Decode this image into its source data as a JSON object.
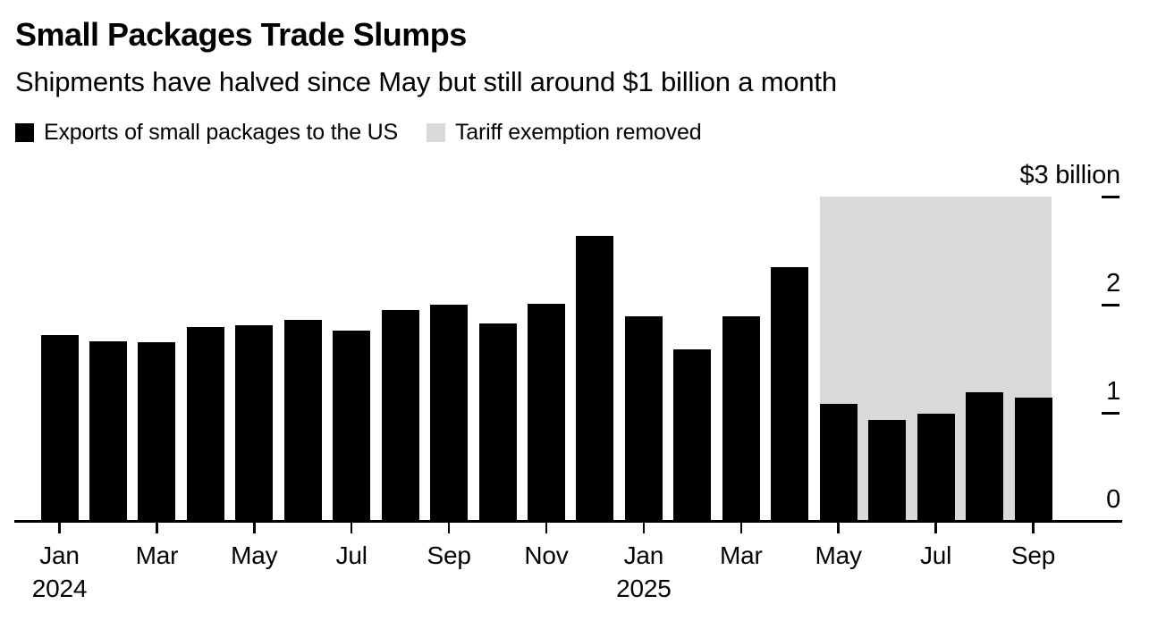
{
  "chart_data": {
    "type": "bar",
    "title": "Small Packages Trade Slumps",
    "subtitle": "Shipments have halved since May but still around $1 billion a month",
    "legend": [
      {
        "label": "Exports of small packages to the US",
        "color": "#000000"
      },
      {
        "label": "Tariff exemption removed",
        "color": "#d9d9d9"
      }
    ],
    "series_name": "Exports of small packages to the US",
    "unit": "$ billion",
    "bar_color": "#000000",
    "grid": false,
    "legend_position": "top-left",
    "y_axis_side": "right",
    "ylim": [
      0,
      3
    ],
    "categories": [
      "Jan 2024",
      "Feb 2024",
      "Mar 2024",
      "Apr 2024",
      "May 2024",
      "Jun 2024",
      "Jul 2024",
      "Aug 2024",
      "Sep 2024",
      "Oct 2024",
      "Nov 2024",
      "Dec 2024",
      "Jan 2025",
      "Feb 2025",
      "Mar 2025",
      "Apr 2025",
      "May 2025",
      "Jun 2025",
      "Jul 2025",
      "Aug 2025",
      "Sep 2025"
    ],
    "values": [
      1.72,
      1.66,
      1.65,
      1.79,
      1.81,
      1.86,
      1.76,
      1.95,
      2.0,
      1.83,
      2.01,
      2.64,
      1.89,
      1.59,
      1.89,
      2.35,
      1.08,
      0.93,
      0.99,
      1.19,
      1.14
    ],
    "y_ticks": [
      {
        "value": 3,
        "label": "$3 billion",
        "show_dash": true
      },
      {
        "value": 2,
        "label": "2",
        "show_dash": true
      },
      {
        "value": 1,
        "label": "1",
        "show_dash": true
      },
      {
        "value": 0,
        "label": "0",
        "show_dash": false
      }
    ],
    "x_ticks": [
      {
        "index": 0,
        "label": "Jan"
      },
      {
        "index": 2,
        "label": "Mar"
      },
      {
        "index": 4,
        "label": "May"
      },
      {
        "index": 6,
        "label": "Jul"
      },
      {
        "index": 8,
        "label": "Sep"
      },
      {
        "index": 10,
        "label": "Nov"
      },
      {
        "index": 12,
        "label": "Jan"
      },
      {
        "index": 14,
        "label": "Mar"
      },
      {
        "index": 16,
        "label": "May"
      },
      {
        "index": 18,
        "label": "Jul"
      },
      {
        "index": 20,
        "label": "Sep"
      }
    ],
    "year_labels": [
      {
        "index": 0,
        "text": "2024"
      },
      {
        "index": 12,
        "text": "2025"
      }
    ],
    "highlight_region": {
      "label": "Tariff exemption removed",
      "from_category": "May 2025",
      "to_category": "Sep 2025",
      "from_index": 16,
      "to_index": 20,
      "y_top": 3,
      "color": "#d9d9d9"
    }
  }
}
